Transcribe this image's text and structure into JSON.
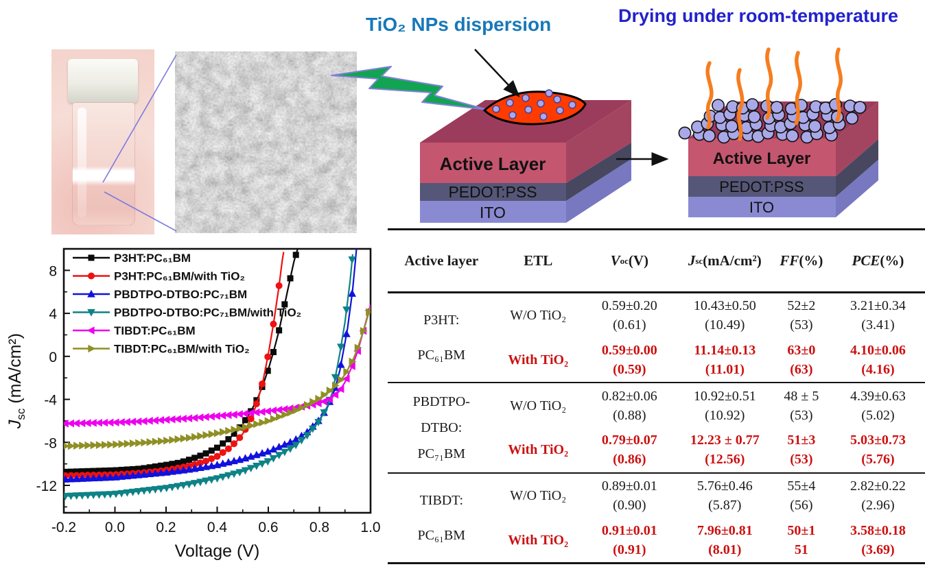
{
  "figure": {
    "dispersion_label": "TiO₂ NPs dispersion",
    "drying_label": "Drying under room-temperature",
    "device_layers": [
      "Active Layer",
      "PEDOT:PSS",
      "ITO"
    ]
  },
  "colors": {
    "dispersion_label": "#1878b8",
    "drying_label": "#2222cc",
    "table_highlight": "#cc1111",
    "active_front": "#c55670",
    "active_top": "#9c3c5d",
    "active_side": "#a34560",
    "pedot_front": "#565678",
    "pedot_side": "#474760",
    "ito_front": "#8a8ad2",
    "ito_side": "#7878c0",
    "nanoparticle": "#a9a9e9",
    "droplet": "#ff3b00",
    "lightning": "#12a452",
    "vapor": "#f67d1f",
    "connector": "#7b7bde"
  },
  "chart_data": {
    "type": "line",
    "xlabel": "Voltage (V)",
    "ylabel": {
      "sym": "J",
      "sub": "sc",
      "unit": " (mA/cm²)"
    },
    "xlim": [
      -0.2,
      1.0
    ],
    "ylim": [
      -14.55,
      10
    ],
    "xticks": [
      -0.2,
      0.0,
      0.2,
      0.4,
      0.6,
      0.8,
      1.0
    ],
    "yticks": [
      8,
      4,
      0,
      -4,
      -8,
      -12
    ],
    "grid": false,
    "legend_position": "top-left",
    "series": [
      {
        "name": "P3HT:PC₆₁BM",
        "color": "#0a0a0a",
        "marker": "square",
        "x": [
          -0.2,
          0,
          0.1,
          0.2,
          0.25,
          0.3,
          0.35,
          0.4,
          0.45,
          0.5,
          0.53,
          0.56,
          0.58,
          0.6,
          0.62,
          0.64,
          0.66,
          0.68,
          0.7,
          0.715
        ],
        "y": [
          -10.75,
          -10.6,
          -10.45,
          -10.1,
          -9.9,
          -9.55,
          -9.1,
          -8.5,
          -7.6,
          -6.3,
          -5.2,
          -3.8,
          -2.6,
          -1.2,
          0.4,
          2.2,
          4.4,
          6.6,
          8.8,
          10
        ]
      },
      {
        "name": "P3HT:PC₆₁BM/with TiO₂",
        "color": "#ee1111",
        "marker": "circle",
        "x": [
          -0.2,
          0,
          0.1,
          0.2,
          0.3,
          0.35,
          0.4,
          0.45,
          0.48,
          0.5,
          0.52,
          0.54,
          0.56,
          0.58,
          0.6,
          0.62,
          0.64,
          0.655,
          0.662
        ],
        "y": [
          -11.1,
          -11.0,
          -10.85,
          -10.6,
          -10.15,
          -9.8,
          -9.3,
          -8.5,
          -7.8,
          -7.2,
          -6.4,
          -5.4,
          -4.0,
          -2.2,
          0.2,
          3.0,
          6.2,
          9.0,
          10
        ]
      },
      {
        "name": "PBDTPO-DTBO:PC₇₁BM",
        "color": "#1111dd",
        "marker": "triangle-up",
        "x": [
          -0.2,
          0,
          0.2,
          0.3,
          0.4,
          0.5,
          0.6,
          0.7,
          0.75,
          0.8,
          0.83,
          0.86,
          0.88,
          0.89,
          0.91,
          0.93,
          0.945
        ],
        "y": [
          -11.45,
          -11.25,
          -10.8,
          -10.5,
          -10.1,
          -9.55,
          -8.85,
          -7.85,
          -7.1,
          -5.9,
          -4.8,
          -3.1,
          -1.3,
          0.0,
          2.6,
          6.2,
          10
        ]
      },
      {
        "name": "PBDTPO-DTBO:PC₇₁BM/with TiO₂",
        "color": "#0e8286",
        "marker": "triangle-down",
        "x": [
          -0.2,
          0,
          0.2,
          0.3,
          0.4,
          0.5,
          0.6,
          0.7,
          0.75,
          0.8,
          0.83,
          0.85,
          0.86,
          0.88,
          0.9,
          0.92,
          0.932
        ],
        "y": [
          -13.0,
          -12.8,
          -12.25,
          -11.85,
          -11.35,
          -10.7,
          -9.75,
          -8.4,
          -7.4,
          -6.0,
          -4.7,
          -3.4,
          -2.2,
          0.3,
          3.2,
          7.0,
          10
        ]
      },
      {
        "name": "TIBDT:PC₆₁BM",
        "color": "#ee00ee",
        "marker": "triangle-left",
        "x": [
          -0.2,
          0,
          0.1,
          0.2,
          0.3,
          0.4,
          0.5,
          0.6,
          0.7,
          0.75,
          0.8,
          0.84,
          0.88,
          0.9,
          0.93,
          0.95,
          0.97,
          1.0
        ],
        "y": [
          -6.25,
          -6.15,
          -6.05,
          -5.9,
          -5.75,
          -5.55,
          -5.35,
          -5.1,
          -4.8,
          -4.6,
          -4.35,
          -4.0,
          -3.2,
          -2.4,
          -0.8,
          0.5,
          2.2,
          4.8
        ]
      },
      {
        "name": "TIBDT:PC₆₁BM/with TiO₂",
        "color": "#8f8f25",
        "marker": "triangle-right",
        "x": [
          -0.2,
          0,
          0.1,
          0.2,
          0.3,
          0.4,
          0.5,
          0.6,
          0.7,
          0.75,
          0.8,
          0.85,
          0.88,
          0.9,
          0.93,
          0.95,
          0.97,
          1.0
        ],
        "y": [
          -8.35,
          -8.2,
          -8.05,
          -7.85,
          -7.55,
          -7.15,
          -6.65,
          -6.0,
          -5.1,
          -4.55,
          -3.9,
          -3.0,
          -2.3,
          -1.7,
          -0.4,
          0.8,
          2.2,
          4.6
        ]
      }
    ]
  },
  "table": {
    "headers": [
      {
        "text": "Active layer",
        "italic": false
      },
      {
        "text": "ETL",
        "italic": false
      },
      {
        "text": "V",
        "sub": "oc",
        "rest": " (V)",
        "italic": true
      },
      {
        "text": "J",
        "sub": "sc",
        "rest": " (mA/cm²)",
        "italic": true
      },
      {
        "text": "FF",
        "rest": " (%)",
        "italic": true
      },
      {
        "text": "PCE",
        "rest": " (%)",
        "italic": true
      }
    ],
    "groups": [
      {
        "active_layer": [
          "P3HT:",
          "PC₆₁BM"
        ],
        "rows": [
          {
            "etl": "W/O TiO₂",
            "highlight": false,
            "values": [
              [
                "0.59±0.20",
                "(0.61)"
              ],
              [
                "10.43±0.50",
                "(10.49)"
              ],
              [
                "52±2",
                "(53)"
              ],
              [
                "3.21±0.34",
                "(3.41)"
              ]
            ]
          },
          {
            "etl": "With TiO₂",
            "highlight": true,
            "values": [
              [
                "0.59±0.00",
                "(0.59)"
              ],
              [
                "11.14±0.13",
                "(11.01)"
              ],
              [
                "63±0",
                "(63)"
              ],
              [
                "4.10±0.06",
                "(4.16)"
              ]
            ]
          }
        ]
      },
      {
        "active_layer": [
          "PBDTPO-",
          "DTBO:",
          "PC₇₁BM"
        ],
        "rows": [
          {
            "etl": "W/O TiO₂",
            "highlight": false,
            "values": [
              [
                "0.82±0.06",
                "(0.88)"
              ],
              [
                "10.92±0.51",
                "(10.92)"
              ],
              [
                "48 ± 5",
                "(53)"
              ],
              [
                "4.39±0.63",
                "(5.02)"
              ]
            ]
          },
          {
            "etl": "With TiO₂",
            "highlight": true,
            "values": [
              [
                "0.79±0.07",
                "(0.86)"
              ],
              [
                "12.23 ± 0.77",
                "(12.56)"
              ],
              [
                "51±3",
                "(53)"
              ],
              [
                "5.03±0.73",
                "(5.76)"
              ]
            ]
          }
        ]
      },
      {
        "active_layer": [
          "TIBDT:",
          "PC₆₁BM"
        ],
        "rows": [
          {
            "etl": "W/O TiO₂",
            "highlight": false,
            "values": [
              [
                "0.89±0.01",
                "(0.90)"
              ],
              [
                "5.76±0.46",
                "(5.87)"
              ],
              [
                "55±4",
                "(56)"
              ],
              [
                "2.82±0.22",
                "(2.96)"
              ]
            ]
          },
          {
            "etl": "With TiO₂",
            "highlight": true,
            "values": [
              [
                "0.91±0.01",
                "(0.91)"
              ],
              [
                "7.96±0.81",
                "(8.01)"
              ],
              [
                "50±1",
                "51"
              ],
              [
                "3.58±0.18",
                "(3.69)"
              ]
            ]
          }
        ]
      }
    ]
  }
}
